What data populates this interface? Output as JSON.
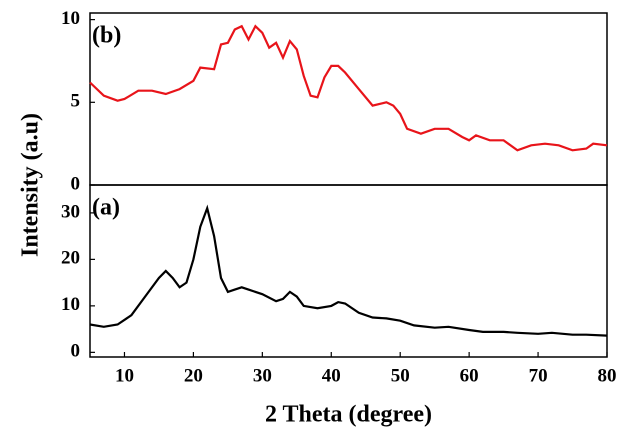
{
  "chart_data": [
    {
      "type": "line",
      "panel_label": "(b)",
      "ylabel": "Intensity (a.u)",
      "x": [
        5,
        7,
        9,
        10,
        12,
        14,
        16,
        18,
        20,
        21,
        23,
        24,
        25,
        26,
        27,
        28,
        29,
        30,
        31,
        32,
        33,
        34,
        35,
        36,
        37,
        38,
        39,
        40,
        41,
        42,
        44,
        46,
        48,
        49,
        50,
        51,
        53,
        55,
        57,
        59,
        60,
        61,
        63,
        65,
        67,
        69,
        71,
        73,
        75,
        77,
        78,
        80
      ],
      "series": [
        {
          "color": "#e8141a",
          "values": [
            6.2,
            5.4,
            5.1,
            5.2,
            5.7,
            5.7,
            5.5,
            5.8,
            6.3,
            7.1,
            7.0,
            8.5,
            8.6,
            9.4,
            9.6,
            8.8,
            9.6,
            9.2,
            8.3,
            8.6,
            7.7,
            8.7,
            8.2,
            6.6,
            5.4,
            5.3,
            6.5,
            7.2,
            7.2,
            6.8,
            5.8,
            4.8,
            5.0,
            4.8,
            4.3,
            3.4,
            3.1,
            3.4,
            3.4,
            2.9,
            2.7,
            3.0,
            2.7,
            2.7,
            2.1,
            2.4,
            2.5,
            2.4,
            2.1,
            2.2,
            2.5,
            2.4
          ]
        }
      ],
      "xlim": [
        5,
        80
      ],
      "ylim": [
        0,
        10.4
      ],
      "yticks": [
        0,
        5,
        10
      ]
    },
    {
      "type": "line",
      "panel_label": "(a)",
      "xlabel": "2 Theta (degree)",
      "x": [
        5,
        7,
        9,
        11,
        13,
        15,
        16,
        17,
        18,
        19,
        20,
        21,
        22,
        23,
        24,
        25,
        26,
        27,
        28,
        30,
        32,
        33,
        34,
        35,
        36,
        38,
        40,
        41,
        42,
        44,
        46,
        48,
        50,
        52,
        55,
        57,
        60,
        62,
        65,
        67,
        70,
        72,
        75,
        77,
        80
      ],
      "series": [
        {
          "color": "#000000",
          "values": [
            6,
            5.5,
            6,
            8,
            12,
            16,
            17.5,
            16,
            14,
            15,
            20,
            27,
            31,
            25,
            16,
            13,
            13.5,
            14,
            13.5,
            12.5,
            11,
            11.5,
            13,
            12,
            10,
            9.5,
            10,
            10.8,
            10.5,
            8.5,
            7.5,
            7.3,
            6.8,
            5.8,
            5.3,
            5.5,
            4.8,
            4.4,
            4.4,
            4.2,
            4.0,
            4.2,
            3.8,
            3.8,
            3.6
          ]
        }
      ],
      "xlim": [
        5,
        80
      ],
      "xticks": [
        10,
        20,
        30,
        40,
        50,
        60,
        70,
        80
      ],
      "ylim": [
        -1,
        36
      ],
      "yticks": [
        0,
        10,
        20,
        30
      ]
    }
  ]
}
